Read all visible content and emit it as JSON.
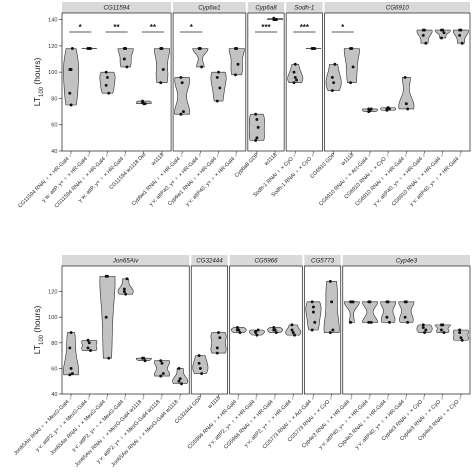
{
  "chart_data": {
    "type": "violin",
    "y_label": "LT",
    "y_label_sub": "100",
    "y_label_unit": " (hours)",
    "colors": {
      "violin_fill": "#c2c2c2",
      "violin_stroke": "#2b2b2b",
      "point": "#111111",
      "strip_fill": "#d9d9d9",
      "panel_border": "#333333"
    },
    "rows": [
      {
        "ylim": [
          40,
          145
        ],
        "yticks": [
          40,
          60,
          80,
          100,
          120,
          140
        ],
        "panels": [
          {
            "title": "CG11594",
            "groups": [
              {
                "label": "CG11594 RNAi ♀ × HR-Gal4 ♂",
                "pts": [
                  102,
                  102,
                  118,
                  84,
                  75
                ]
              },
              {
                "label": "y w; attP, y+ ♀ × HR-Gal4 ♂",
                "pts": [
                  118,
                  118,
                  118,
                  118
                ]
              },
              {
                "label": "CG11594 RNAi ♀ × HR-Gal4 ♂",
                "pts": [
                  90,
                  96,
                  84,
                  100
                ]
              },
              {
                "label": "y w; attP, y+ ♀ × HR-Gal4 ♂",
                "pts": [
                  118,
                  118,
                  104,
                  110
                ]
              },
              {
                "label": "CG11594 w1118 Del",
                "pts": [
                  77,
                  76,
                  76,
                  78
                ]
              },
              {
                "label": "w1118",
                "pts": [
                  118,
                  118,
                  102,
                  92
                ]
              }
            ],
            "sig": [
              {
                "a": 0,
                "b": 1,
                "label": "*"
              },
              {
                "a": 2,
                "b": 3,
                "label": "**"
              },
              {
                "a": 4,
                "b": 5,
                "label": "**"
              }
            ]
          },
          {
            "title": "Cyp6w1",
            "groups": [
              {
                "label": "Cyp6w1 RNAi ♀ × HR-Gal4 ♂",
                "pts": [
                  96,
                  92,
                  70,
                  68
                ]
              },
              {
                "label": "y v; attP40, y+ ♀ × HR-Gal4 ♂",
                "pts": [
                  118,
                  118,
                  104
                ]
              },
              {
                "label": "Cyp6w1 RNAi ♀ × HR-Gal4 ♂",
                "pts": [
                  96,
                  100,
                  88,
                  78
                ]
              },
              {
                "label": "y v; attP40, y+ ♀ × HR-Gal4 ♂",
                "pts": [
                  118,
                  118,
                  106,
                  98
                ]
              }
            ],
            "sig": [
              {
                "a": 0,
                "b": 1,
                "label": "*"
              }
            ]
          },
          {
            "title": "Cyp6a8",
            "groups": [
              {
                "label": "Cyp6a8 GDP",
                "pts": [
                  68,
                  64,
                  58,
                  48,
                  50
                ]
              },
              {
                "label": "w1118",
                "pts": [
                  140,
                  140,
                  140,
                  141
                ]
              }
            ],
            "sig": [
              {
                "a": 0,
                "b": 1,
                "label": "***"
              }
            ]
          },
          {
            "title": "Sodh-1",
            "groups": [
              {
                "label": "Sodh-1 RNAi ♀ × CyO ♂",
                "pts": [
                  100,
                  96,
                  94,
                  92,
                  106
                ]
              },
              {
                "label": "Sodh-1 RNAi ♀ × CyO ♂",
                "pts": [
                  118,
                  118,
                  118,
                  118
                ]
              }
            ],
            "sig": [
              {
                "a": 0,
                "b": 1,
                "label": "***"
              }
            ]
          },
          {
            "title": "CG6910",
            "groups": [
              {
                "label": "CG6910 GDP",
                "pts": [
                  96,
                  92,
                  106,
                  86
                ]
              },
              {
                "label": "w1118",
                "pts": [
                  118,
                  118,
                  104,
                  92
                ]
              },
              {
                "label": "CG6910 RNAi ♀ × Act-Gal4 ♂",
                "pts": [
                  72,
                  71,
                  72,
                  70
                ]
              },
              {
                "label": "CG6910 RNAi ♀ × CyO ♂",
                "pts": [
                  72,
                  73,
                  72,
                  71
                ]
              },
              {
                "label": "CG6910 RNAi ♀ × HR-Gal4 ♂",
                "pts": [
                  96,
                  76,
                  72
                ]
              },
              {
                "label": "y v; attP40, y+ ♀ × HR-Gal4 ♂",
                "pts": [
                  132,
                  132,
                  122,
                  128
                ]
              },
              {
                "label": "CG6910 RNAi ♀ × HR-Gal4 ♂",
                "pts": [
                  132,
                  132,
                  130,
                  126
                ]
              },
              {
                "label": "y v; attP40, y+ ♀ × HR-Gal4 ♂",
                "pts": [
                  132,
                  132,
                  122,
                  128
                ]
              }
            ],
            "sig": [
              {
                "a": 0,
                "b": 1,
                "label": "*"
              }
            ]
          }
        ]
      },
      {
        "ylim": [
          40,
          140
        ],
        "yticks": [
          40,
          60,
          80,
          100,
          120
        ],
        "panels": [
          {
            "title": "Jon65Aiv",
            "groups": [
              {
                "label": "Jon65Aiv RNAi ♀ × MexG-Gal4 ♂",
                "pts": [
                  76,
                  60,
                  56,
                  55,
                  88
                ]
              },
              {
                "label": "y v; attP2, y+ ♀ × MexG-Gal4 ♂",
                "pts": [
                  76,
                  80,
                  74,
                  82
                ]
              },
              {
                "label": "Jon65Aiv RNAi ♀ × MexG-Gal4 ♂",
                "pts": [
                  132,
                  132,
                  68,
                  100
                ]
              },
              {
                "label": "y v; attP2, y+ ♀ × MexG-Gal4 ♂",
                "pts": [
                  122,
                  118,
                  130,
                  120
                ]
              },
              {
                "label": "Jon65Aiv RNAi ♀ × MexG-Gal4 w1118 ♂",
                "pts": [
                  68,
                  68,
                  66,
                  68
                ]
              },
              {
                "label": "y v; attP2, y+ ♀ × MexG-Gal4 w1118 ♂",
                "pts": [
                  66,
                  64,
                  56,
                  54
                ]
              },
              {
                "label": "Jon65Aiv RNAi ♀ × MexG-Gal4 w1118 ♂",
                "pts": [
                  60,
                  52,
                  48,
                  50
                ]
              }
            ],
            "sig": []
          },
          {
            "title": "CG32444",
            "groups": [
              {
                "label": "CG32444 GDP",
                "pts": [
                  64,
                  60,
                  56,
                  70
                ]
              },
              {
                "label": "w1118",
                "pts": [
                  76,
                  88,
                  84,
                  72
                ]
              }
            ],
            "sig": []
          },
          {
            "title": "CG5966",
            "groups": [
              {
                "label": "CG5966 RNAi ♀ × HR-Gal4 ♂",
                "pts": [
                  90,
                  90,
                  88,
                  92
                ]
              },
              {
                "label": "y v; attP2, y+ ♀ × HR-Gal4 ♂",
                "pts": [
                  88,
                  86,
                  90,
                  89
                ]
              },
              {
                "label": "CG5966 RNAi ♀ × HR-Gal4 ♂",
                "pts": [
                  90,
                  90,
                  88,
                  92
                ]
              },
              {
                "label": "y v; attP2, y+ ♀ × HR-Gal4 ♂",
                "pts": [
                  90,
                  88,
                  86,
                  94
                ]
              }
            ],
            "sig": []
          },
          {
            "title": "CG5773",
            "groups": [
              {
                "label": "CG5773 RNAi ♀ × Act-Gal4 ♂",
                "pts": [
                  112,
                  108,
                  96,
                  90,
                  104
                ]
              },
              {
                "label": "CG5773 RNAi ♀ × CyO ♂",
                "pts": [
                  128,
                  112,
                  90,
                  88
                ]
              }
            ],
            "sig": []
          },
          {
            "title": "Cyp4e3",
            "groups": [
              {
                "label": "Cyp4e3 RNAi ♀ × HR-Gal4 ♂",
                "pts": [
                  112,
                  112,
                  112,
                  96
                ]
              },
              {
                "label": "y v; attP40, y+ ♀ × HR-Gal4 ♂",
                "pts": [
                  112,
                  112,
                  96,
                  96
                ]
              },
              {
                "label": "Cyp4e3 RNAi ♀ × HR-Gal4 ♂",
                "pts": [
                  112,
                  112,
                  96,
                  100
                ]
              },
              {
                "label": "y v; attP40, y+ ♀ × HR-Gal4 ♂",
                "pts": [
                  112,
                  112,
                  96,
                  100
                ]
              },
              {
                "label": "Cyp4e3 RNAi ♀ × CyO ♂",
                "pts": [
                  94,
                  88,
                  90,
                  92
                ]
              },
              {
                "label": "Cyp4e3 RNAi ♀ × CyO ♂",
                "pts": [
                  94,
                  94,
                  88,
                  90
                ]
              },
              {
                "label": "Cyp4e3 RNAi ♀ × CyO ♂",
                "pts": [
                  88,
                  84,
                  82,
                  90
                ]
              }
            ],
            "sig": []
          }
        ]
      }
    ]
  }
}
